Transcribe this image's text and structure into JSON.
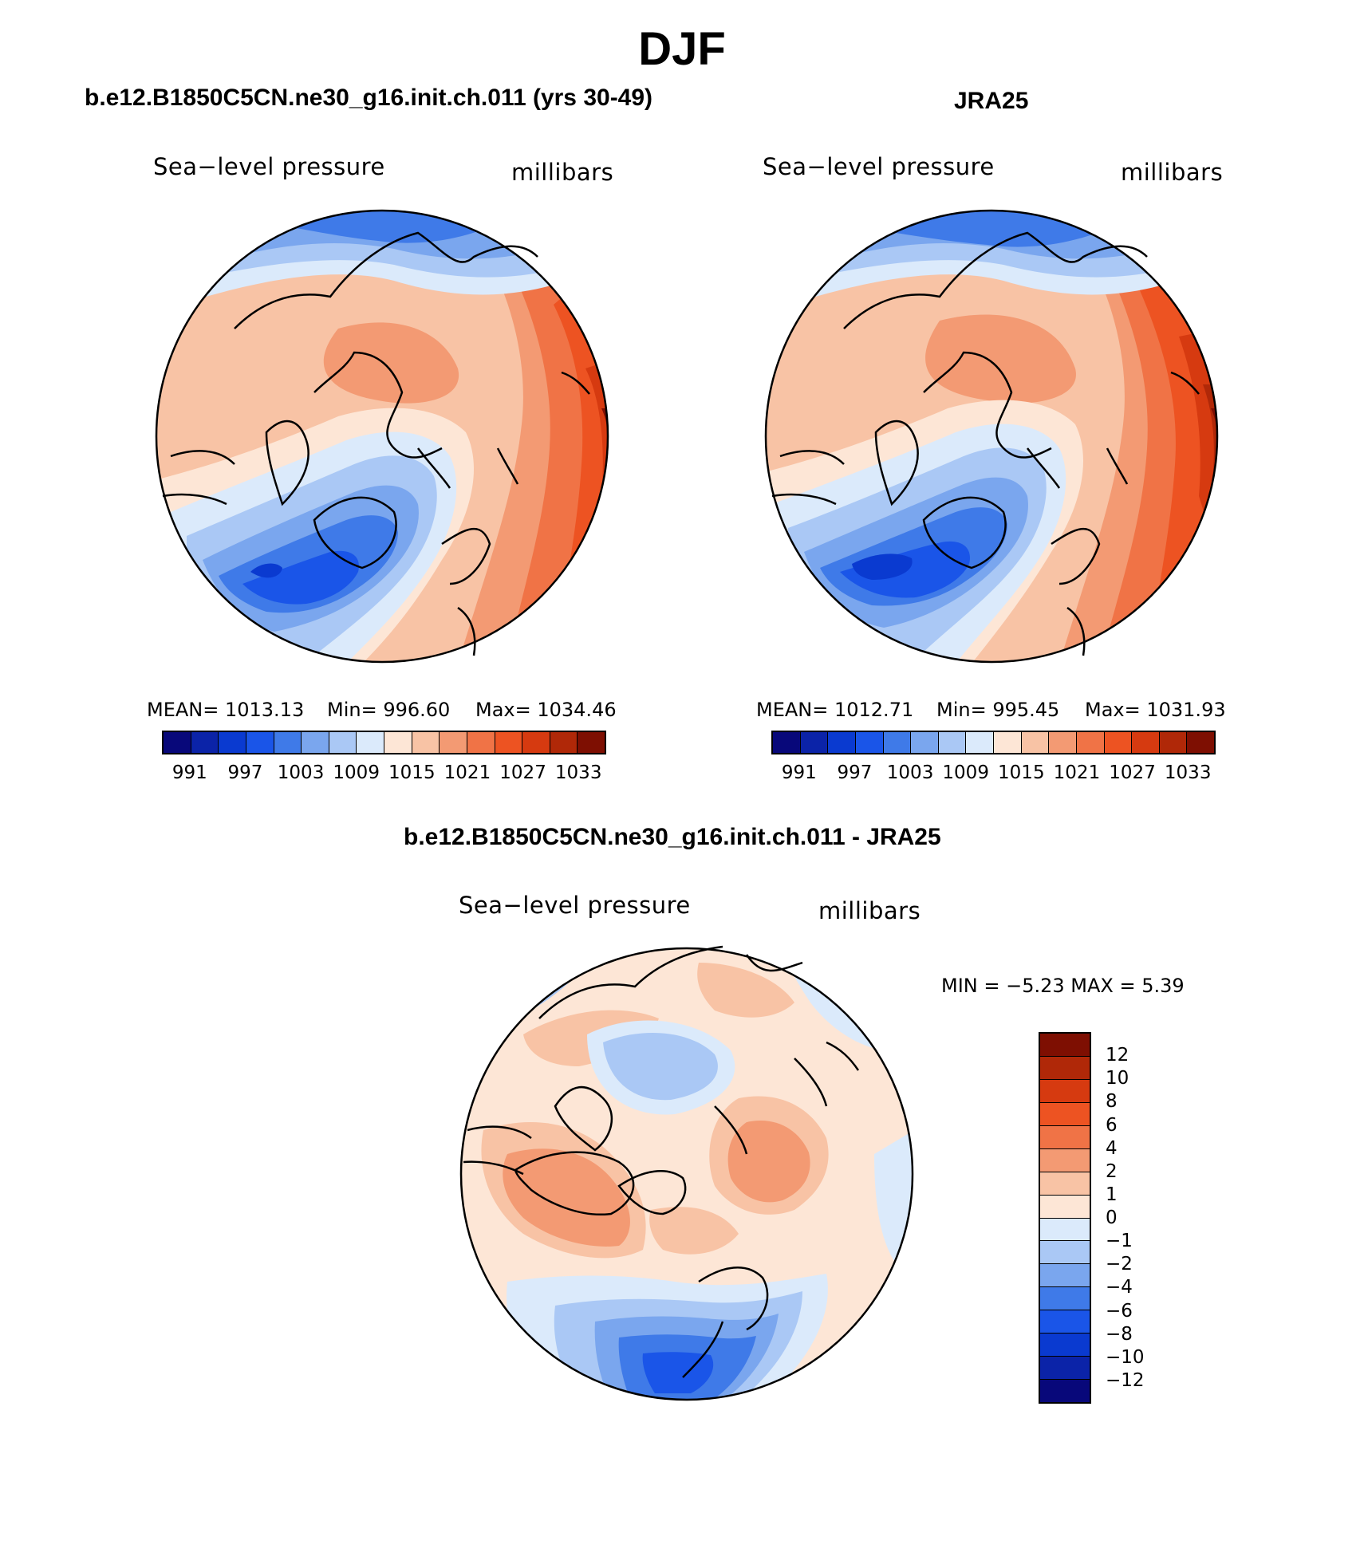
{
  "page": {
    "title": "DJF"
  },
  "panels": [
    {
      "title": "b.e12.B1850C5CN.ne30_g16.init.ch.011 (yrs 30-49)",
      "variable_label": "Sea−level pressure",
      "units_label": "millibars",
      "stats": {
        "mean": "MEAN=  1013.13",
        "min": "Min=  996.60",
        "max": "Max=  1034.46"
      },
      "colorbar_ticks": [
        "991",
        "997",
        "1003",
        "1009",
        "1015",
        "1021",
        "1027",
        "1033"
      ]
    },
    {
      "title": "JRA25",
      "variable_label": "Sea−level pressure",
      "units_label": "millibars",
      "stats": {
        "mean": "MEAN=  1012.71",
        "min": "Min=  995.45",
        "max": "Max=  1031.93"
      },
      "colorbar_ticks": [
        "991",
        "997",
        "1003",
        "1009",
        "1015",
        "1021",
        "1027",
        "1033"
      ]
    }
  ],
  "diff_panel": {
    "title": "b.e12.B1850C5CN.ne30_g16.init.ch.011 - JRA25",
    "variable_label": "Sea−level pressure",
    "units_label": "millibars",
    "minmax": "MIN =   −5.23  MAX =     5.39",
    "colorbar_ticks": [
      "12",
      "10",
      "8",
      "6",
      "4",
      "2",
      "1",
      "0",
      "−1",
      "−2",
      "−4",
      "−6",
      "−8",
      "−10",
      "−12"
    ]
  },
  "colors": {
    "abs_scale": [
      "#08087a",
      "#0b23a8",
      "#0a3ad0",
      "#1a55e8",
      "#3f7ae8",
      "#7aa6ee",
      "#aac8f5",
      "#dbeafb",
      "#fde6d6",
      "#f8c3a5",
      "#f39a73",
      "#f07346",
      "#ed5322",
      "#d63a10",
      "#b02808",
      "#7e0f02"
    ],
    "diff_scale": [
      "#7e0f02",
      "#b02808",
      "#d63a10",
      "#ed5322",
      "#f07346",
      "#f39a73",
      "#f8c3a5",
      "#fde6d6",
      "#dbeafb",
      "#aac8f5",
      "#7aa6ee",
      "#3f7ae8",
      "#1a55e8",
      "#0a3ad0",
      "#0b23a8",
      "#08087a"
    ]
  }
}
